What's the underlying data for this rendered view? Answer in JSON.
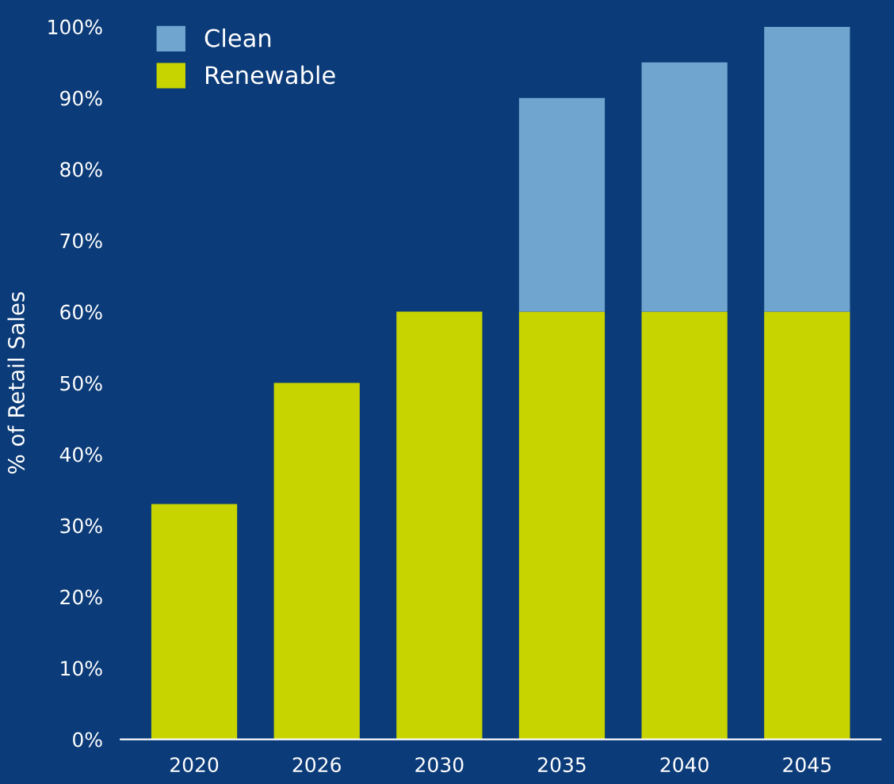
{
  "chart_data": {
    "type": "bar",
    "stacked": true,
    "ylabel": "% of Retail Sales",
    "categories": [
      "2020",
      "2026",
      "2030",
      "2035",
      "2040",
      "2045"
    ],
    "series": [
      {
        "name": "Renewable",
        "color": "#c8d400",
        "values": [
          33,
          50,
          60,
          60,
          60,
          60
        ]
      },
      {
        "name": "Clean",
        "color": "#6fa5cf",
        "values": [
          null,
          null,
          null,
          30,
          35,
          40
        ]
      }
    ],
    "ylim": [
      0,
      100
    ],
    "yticks": [
      {
        "value": 0,
        "label": "0%"
      },
      {
        "value": 10,
        "label": "10%"
      },
      {
        "value": 20,
        "label": "20%"
      },
      {
        "value": 30,
        "label": "30%"
      },
      {
        "value": 40,
        "label": "40%"
      },
      {
        "value": 50,
        "label": "50%"
      },
      {
        "value": 60,
        "label": "60%"
      },
      {
        "value": 70,
        "label": "70%"
      },
      {
        "value": 80,
        "label": "80%"
      },
      {
        "value": 90,
        "label": "90%"
      },
      {
        "value": 100,
        "label": "100%"
      }
    ],
    "grid": false,
    "legend": "top left"
  }
}
